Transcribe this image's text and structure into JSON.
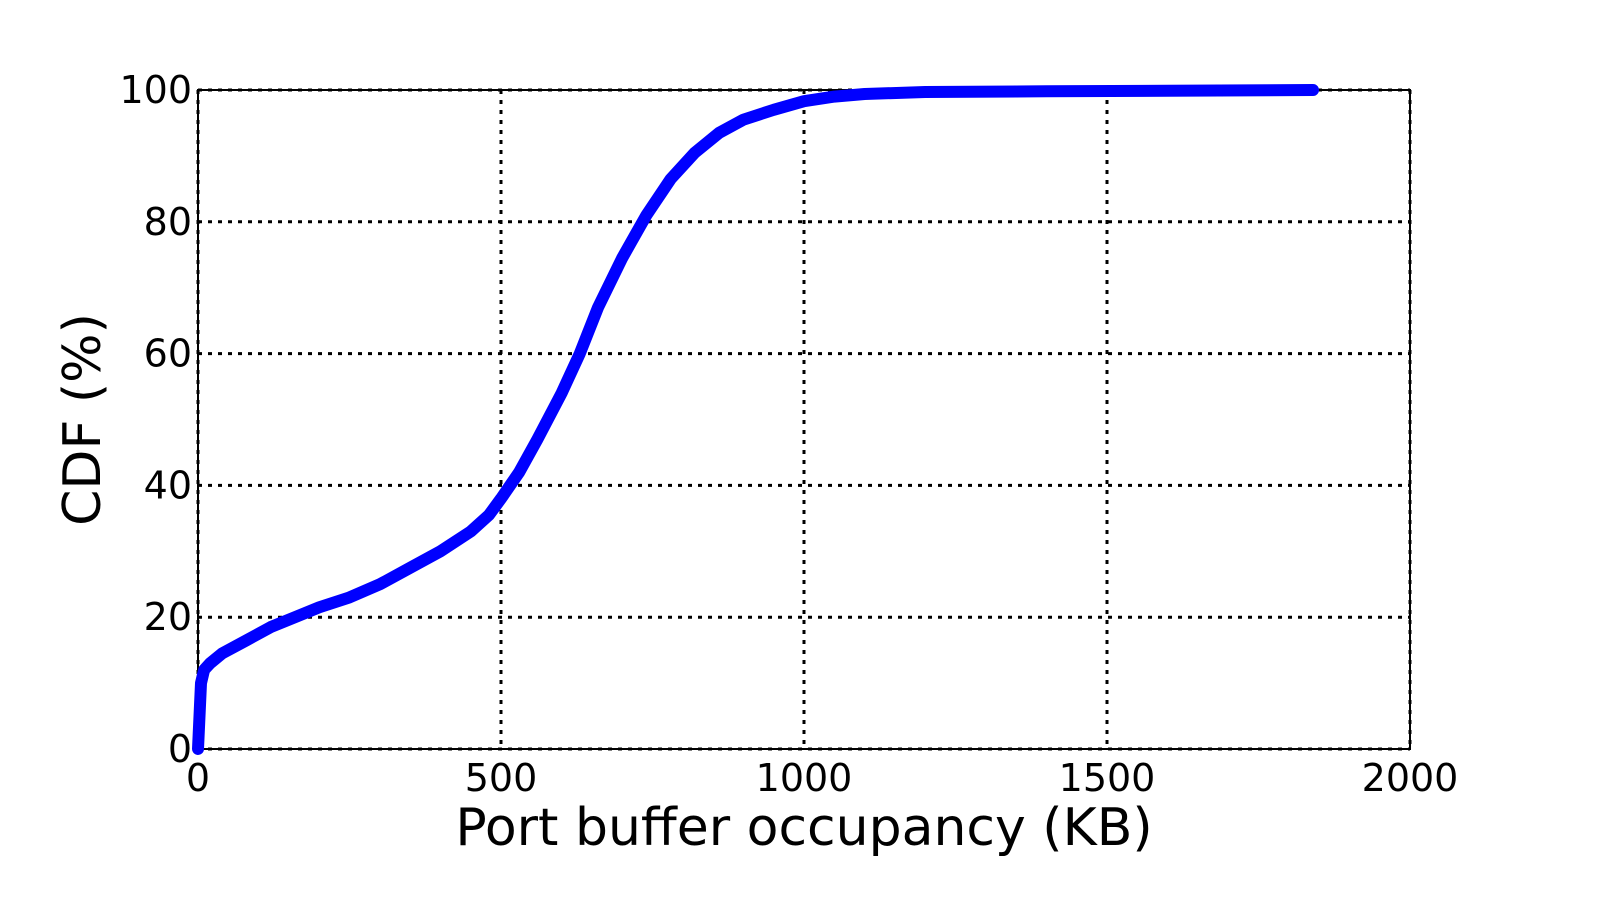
{
  "chart_data": {
    "type": "line",
    "title": "",
    "xlabel": "Port buffer occupancy (KB)",
    "ylabel": "CDF (%)",
    "xlim": [
      0,
      2000
    ],
    "ylim": [
      0,
      100
    ],
    "xticks": [
      0,
      500,
      1000,
      1500,
      2000
    ],
    "yticks": [
      0,
      20,
      40,
      60,
      80,
      100
    ],
    "grid": true,
    "grid_style": "dotted",
    "series": [
      {
        "color": "#0000ff",
        "x": [
          0,
          1,
          3,
          5,
          10,
          20,
          40,
          80,
          120,
          160,
          200,
          250,
          300,
          350,
          400,
          450,
          480,
          500,
          530,
          560,
          600,
          630,
          660,
          700,
          740,
          780,
          820,
          860,
          900,
          950,
          1000,
          1050,
          1100,
          1200,
          1400,
          1600,
          1840
        ],
        "y": [
          0,
          2,
          6,
          10,
          12,
          13,
          14.5,
          16.5,
          18.5,
          20,
          21.5,
          23,
          25,
          27.5,
          30,
          33,
          35.5,
          38,
          42,
          47,
          54,
          60,
          67,
          74.5,
          81,
          86.5,
          90.5,
          93.5,
          95.5,
          97,
          98.3,
          99,
          99.4,
          99.7,
          99.8,
          99.9,
          100
        ]
      }
    ]
  }
}
